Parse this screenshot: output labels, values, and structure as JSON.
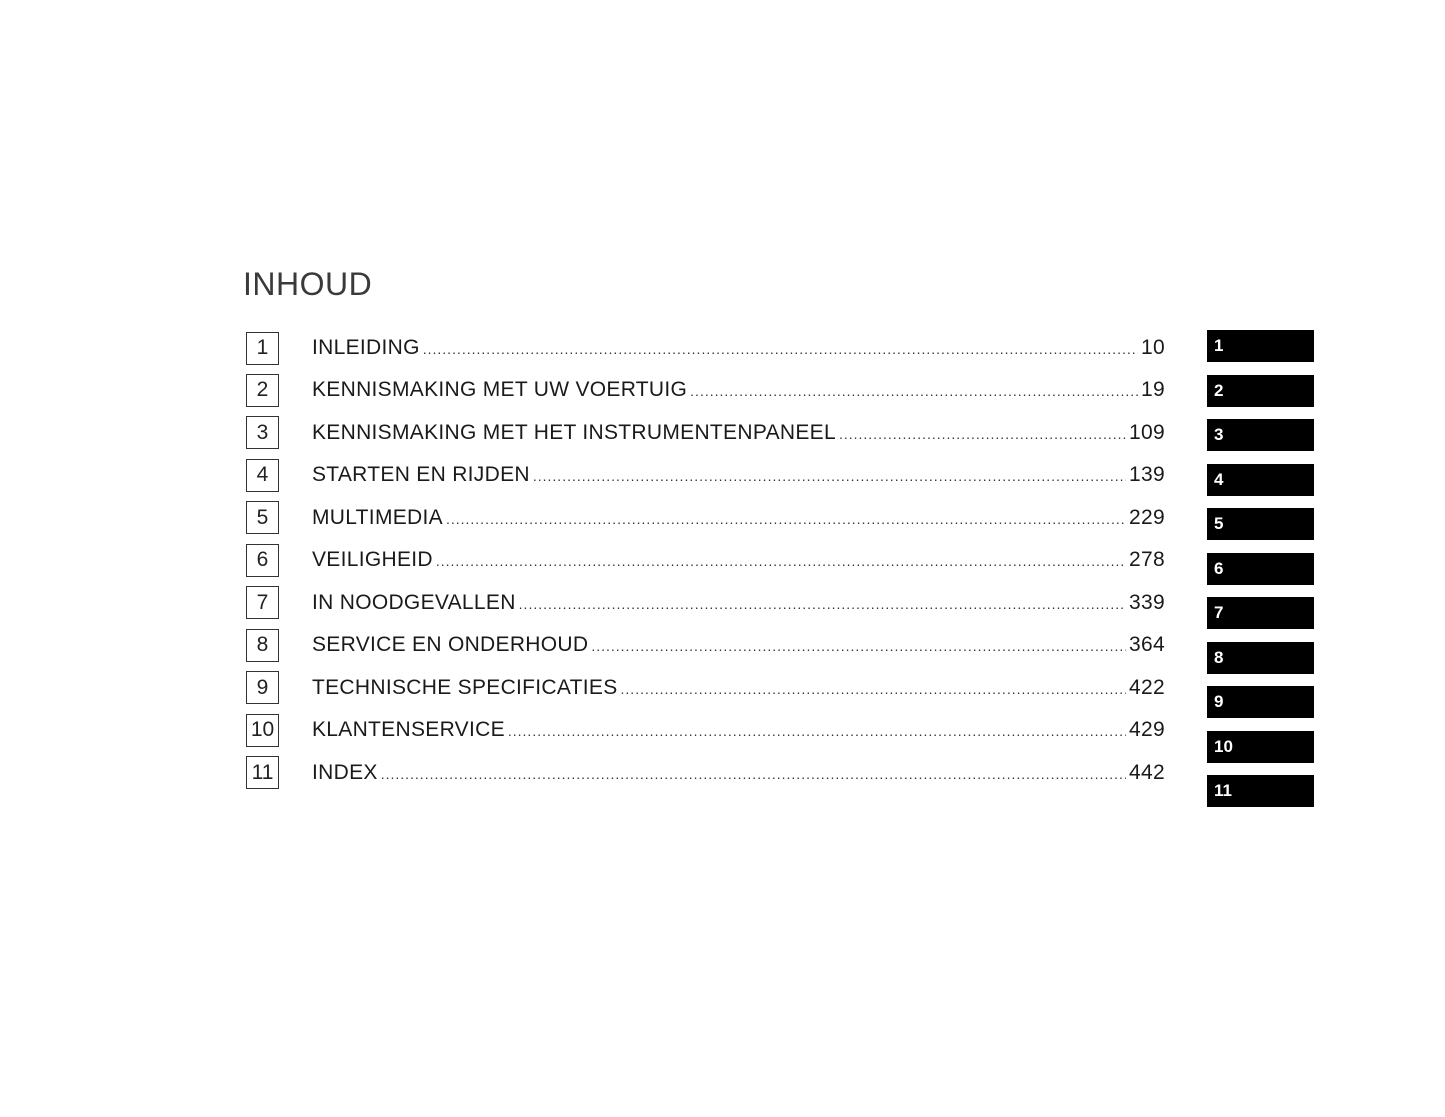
{
  "title": "INHOUD",
  "entries": [
    {
      "num": "1",
      "label": "INLEIDING",
      "page": "10"
    },
    {
      "num": "2",
      "label": "KENNISMAKING MET UW VOERTUIG",
      "page": "19"
    },
    {
      "num": "3",
      "label": "KENNISMAKING MET HET INSTRUMENTENPANEEL",
      "page": "109"
    },
    {
      "num": "4",
      "label": "STARTEN EN RIJDEN",
      "page": "139"
    },
    {
      "num": "5",
      "label": "MULTIMEDIA",
      "page": "229"
    },
    {
      "num": "6",
      "label": "VEILIGHEID",
      "page": "278"
    },
    {
      "num": "7",
      "label": "IN NOODGEVALLEN",
      "page": "339"
    },
    {
      "num": "8",
      "label": "SERVICE EN ONDERHOUD",
      "page": "364"
    },
    {
      "num": "9",
      "label": "TECHNISCHE SPECIFICATIES",
      "page": "422"
    },
    {
      "num": "10",
      "label": "KLANTENSERVICE",
      "page": "429"
    },
    {
      "num": "11",
      "label": "INDEX",
      "page": "442"
    }
  ],
  "tabs": [
    "1",
    "2",
    "3",
    "4",
    "5",
    "6",
    "7",
    "8",
    "9",
    "10",
    "11"
  ],
  "colors": {
    "tab_bg": "#000000",
    "tab_text": "#ffffff"
  }
}
